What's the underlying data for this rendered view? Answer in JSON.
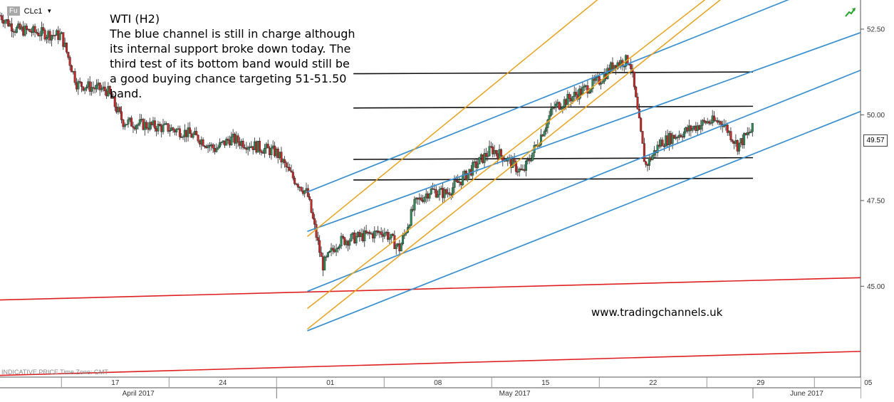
{
  "app": {
    "symbol_badge": "Fu",
    "symbol": "CLc1",
    "dropdown_glyph": "▼",
    "trend_icon": "green-trend-arrow-icon",
    "footnote": "INDICATIVE PRICE   Time Zone: GMT"
  },
  "annotation": {
    "title": "WTI (H2)",
    "lines": [
      "The blue channel is still in charge although",
      "its internal support broke down today. The",
      "third test of its bottom band would still be",
      "a good buying chance targeting 51-51.50",
      "band."
    ]
  },
  "watermark": "www.tradingchannels.uk",
  "last_price": "49.57",
  "colors": {
    "up_candle": "#2e8b57",
    "down_candle": "#c62828",
    "blue_channel": "#3a8fd0",
    "orange_channel": "#e8a21e",
    "red_line": "#e02020",
    "level_line": "#111111"
  },
  "chart_data": {
    "type": "candlestick",
    "instrument": "WTI (H2)",
    "symbol": "CLc1",
    "timeframe": "H2",
    "y_ticks": [
      45.0,
      47.5,
      50.0,
      52.5
    ],
    "y_tick_labels": [
      "45.00",
      "47.50",
      "50.00",
      "52.50"
    ],
    "ylim": [
      42.35,
      53.35
    ],
    "x_day_ticks": [
      "17",
      "24",
      "01",
      "08",
      "15",
      "22",
      "29",
      "05"
    ],
    "x_months": [
      "April 2017",
      "May 2017",
      "June 2017"
    ],
    "xlim_dates": [
      "2017-04-13",
      "2017-06-08"
    ],
    "last_price": 49.57,
    "price_path": [
      {
        "date": "2017-04-13",
        "price": 52.9
      },
      {
        "date": "2017-04-14",
        "price": 52.5
      },
      {
        "date": "2017-04-17",
        "price": 52.3
      },
      {
        "date": "2017-04-18",
        "price": 50.9
      },
      {
        "date": "2017-04-19",
        "price": 50.8
      },
      {
        "date": "2017-04-20",
        "price": 50.7
      },
      {
        "date": "2017-04-21",
        "price": 49.8
      },
      {
        "date": "2017-04-24",
        "price": 49.6
      },
      {
        "date": "2017-04-25",
        "price": 49.5
      },
      {
        "date": "2017-04-26",
        "price": 49.3
      },
      {
        "date": "2017-04-27",
        "price": 49.0
      },
      {
        "date": "2017-04-28",
        "price": 49.3
      },
      {
        "date": "2017-05-01",
        "price": 48.9
      },
      {
        "date": "2017-05-02",
        "price": 48.2
      },
      {
        "date": "2017-05-03",
        "price": 47.7
      },
      {
        "date": "2017-05-04",
        "price": 45.6
      },
      {
        "date": "2017-05-05",
        "price": 46.3
      },
      {
        "date": "2017-05-08",
        "price": 46.6
      },
      {
        "date": "2017-05-09",
        "price": 46.1
      },
      {
        "date": "2017-05-10",
        "price": 47.4
      },
      {
        "date": "2017-05-11",
        "price": 47.8
      },
      {
        "date": "2017-05-12",
        "price": 47.7
      },
      {
        "date": "2017-05-13",
        "price": 48.1
      },
      {
        "date": "2017-05-15",
        "price": 49.0
      },
      {
        "date": "2017-05-16",
        "price": 48.7
      },
      {
        "date": "2017-05-17",
        "price": 48.3
      },
      {
        "date": "2017-05-18",
        "price": 49.2
      },
      {
        "date": "2017-05-19",
        "price": 50.2
      },
      {
        "date": "2017-05-22",
        "price": 51.0
      },
      {
        "date": "2017-05-23",
        "price": 51.5
      },
      {
        "date": "2017-05-24",
        "price": 51.6
      },
      {
        "date": "2017-05-25",
        "price": 48.5
      },
      {
        "date": "2017-05-26",
        "price": 49.2
      },
      {
        "date": "2017-05-29",
        "price": 49.8
      },
      {
        "date": "2017-05-30",
        "price": 49.8
      },
      {
        "date": "2017-05-31",
        "price": 49.1
      },
      {
        "date": "2017-06-01",
        "price": 49.6
      }
    ],
    "horizontal_levels": [
      51.2,
      50.2,
      48.7,
      48.1
    ],
    "blue_channel_lines": [
      {
        "start": [
          "2017-05-03",
          47.75
        ],
        "end": [
          "2017-06-08",
          54.2
        ]
      },
      {
        "start": [
          "2017-05-03",
          46.6
        ],
        "end": [
          "2017-06-08",
          52.4
        ]
      },
      {
        "start": [
          "2017-05-03",
          44.85
        ],
        "end": [
          "2017-06-08",
          51.3
        ]
      },
      {
        "start": [
          "2017-05-03",
          43.7
        ],
        "end": [
          "2017-06-08",
          50.1
        ]
      }
    ],
    "orange_channel_lines": [
      {
        "start": [
          "2017-05-03",
          46.45
        ],
        "end": [
          "2017-05-22",
          53.4
        ]
      },
      {
        "start": [
          "2017-05-03",
          44.35
        ],
        "end": [
          "2017-05-29",
          53.4
        ]
      },
      {
        "start": [
          "2017-05-03",
          43.75
        ],
        "end": [
          "2017-05-30",
          53.4
        ]
      }
    ],
    "red_support_lines": [
      {
        "start": [
          "2017-04-13",
          44.6
        ],
        "end": [
          "2017-06-08",
          45.25
        ]
      },
      {
        "start": [
          "2017-04-13",
          42.4
        ],
        "end": [
          "2017-06-08",
          43.1
        ]
      }
    ]
  }
}
